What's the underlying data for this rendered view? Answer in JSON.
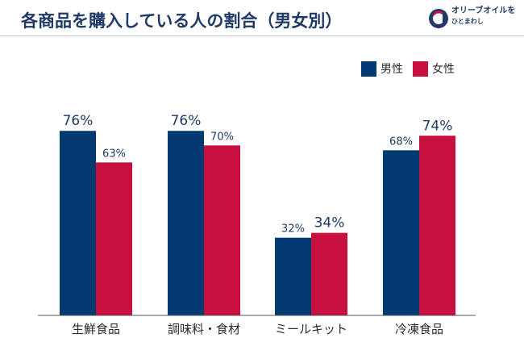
{
  "title": "各商品を購入している人の割合（男女別）",
  "logo": {
    "line1": "オリーブオイルを",
    "line2": "ひとまわし",
    "icon": "olive-o-logo-icon"
  },
  "colors": {
    "male": "#003a70",
    "female": "#c8103e",
    "axis": "#555555",
    "title": "#1f3a66"
  },
  "chart_data": {
    "type": "bar",
    "title": "各商品を購入している人の割合（男女別）",
    "categories": [
      "生鮮食品",
      "調味料・食材",
      "ミールキット",
      "冷凍食品"
    ],
    "series": [
      {
        "name": "男性",
        "values": [
          76,
          76,
          32,
          68
        ],
        "labels": [
          "76%",
          "76%",
          "32%",
          "68%"
        ],
        "emphasis": [
          true,
          true,
          false,
          false
        ]
      },
      {
        "name": "女性",
        "values": [
          63,
          70,
          34,
          74
        ],
        "labels": [
          "63%",
          "70%",
          "34%",
          "74%"
        ],
        "emphasis": [
          false,
          false,
          true,
          true
        ]
      }
    ],
    "xlabel": "",
    "ylabel": "",
    "ylim": [
      0,
      80
    ],
    "grid": false,
    "legend": "top-right"
  }
}
